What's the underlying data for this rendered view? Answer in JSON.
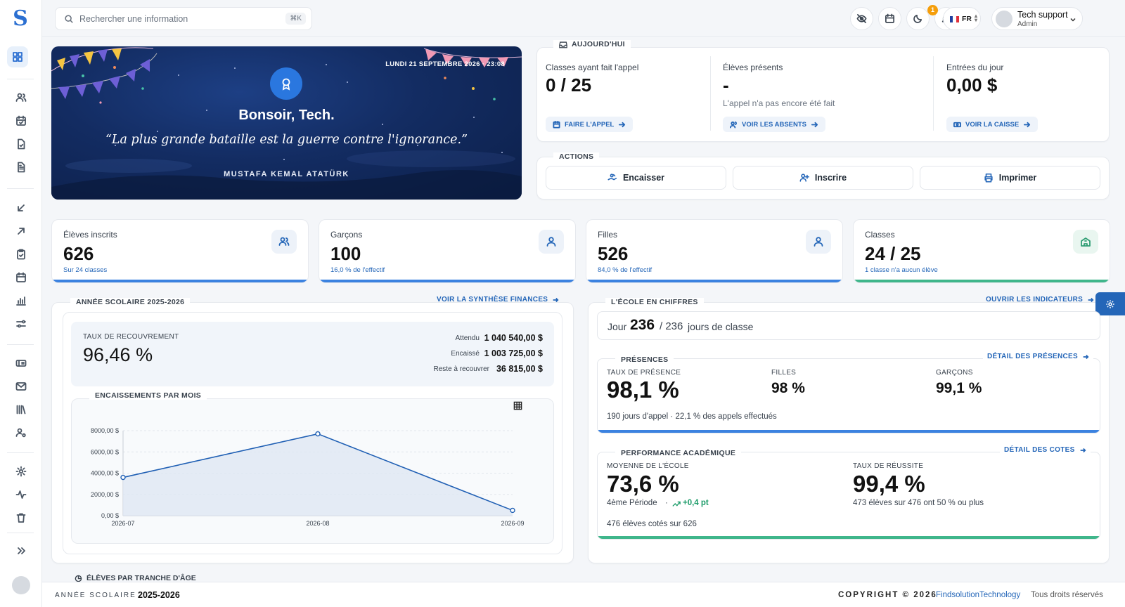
{
  "sidebar": {
    "logo": "S",
    "items": [
      "dashboard-icon",
      "users-icon",
      "calendar-check-icon",
      "file-check-icon",
      "file-text-icon",
      "arrow-down-left-icon",
      "arrow-up-right-icon",
      "clipboard-check-icon",
      "calendar-icon",
      "chart-icon",
      "sliders-icon",
      "ticket-icon",
      "mail-icon",
      "library-icon",
      "user-settings-icon",
      "gear-icon",
      "activity-icon",
      "trash-icon",
      "chevrons-right-icon"
    ]
  },
  "topbar": {
    "search_placeholder": "Rechercher une information",
    "search_shortcut": "⌘K",
    "notification_count": "1",
    "language": "FR",
    "user_name": "Tech support",
    "user_role": "Admin"
  },
  "hero": {
    "date": "LUNDI 21 SEPTEMBRE 2026 · 23:08",
    "greeting": "Bonsoir, Tech.",
    "quote": "“La plus grande bataille est la guerre contre l'ignorance.”",
    "author": "MUSTAFA KEMAL ATATÜRK"
  },
  "today": {
    "legend": "AUJOURD'HUI",
    "classes_label": "Classes ayant fait l'appel",
    "classes_value": "0 / 25",
    "classes_action": "FAIRE L'APPEL",
    "present_label": "Élèves présents",
    "present_value": "-",
    "present_note": "L'appel n'a pas encore été fait",
    "present_action": "VOIR LES ABSENTS",
    "entries_label": "Entrées du jour",
    "entries_value": "0,00 $",
    "entries_action": "VOIR LA CAISSE"
  },
  "actions": {
    "legend": "ACTIONS",
    "collect": "Encaisser",
    "enroll": "Inscrire",
    "print": "Imprimer"
  },
  "stats": [
    {
      "label": "Élèves inscrits",
      "value": "626",
      "sub": "Sur 24 classes",
      "icon": "users-icon"
    },
    {
      "label": "Garçons",
      "value": "100",
      "sub": "16,0 % de l'effectif",
      "icon": "user-icon"
    },
    {
      "label": "Filles",
      "value": "526",
      "sub": "84,0 % de l'effectif",
      "icon": "user-icon"
    },
    {
      "label": "Classes",
      "value": "24 / 25",
      "sub": "1 classe n'a aucun élève",
      "icon": "school-icon"
    }
  ],
  "finance": {
    "legend": "ANNÉE SCOLAIRE 2025-2026",
    "link": "VOIR LA SYNTHÈSE FINANCES",
    "rate_label": "TAUX DE RECOUVREMENT",
    "rate_value": "96,46 %",
    "expected_label": "Attendu",
    "expected_value": "1 040 540,00 $",
    "collected_label": "Encaissé",
    "collected_value": "1 003 725,00 $",
    "remaining_label": "Reste à recouvrer",
    "remaining_value": "36 815,00 $",
    "chart_legend": "ENCAISSEMENTS PAR MOIS"
  },
  "chart_data": {
    "type": "area",
    "x": [
      "2026-07",
      "2026-08",
      "2026-09"
    ],
    "values": [
      3600,
      7700,
      500
    ],
    "ylim": [
      0,
      8000
    ],
    "yticks": [
      "0,00 $",
      "2000,00 $",
      "4000,00 $",
      "6000,00 $",
      "8000,00 $"
    ],
    "grid": true,
    "colors": {
      "line": "#1f5fb4",
      "fill": "#dfe7f2"
    }
  },
  "school": {
    "legend": "L'ÉCOLE EN CHIFFRES",
    "link": "OUVRIR LES INDICATEURS",
    "day_prefix": "Jour",
    "day_value": "236",
    "day_total": "/ 236",
    "day_suffix": "jours de classe"
  },
  "attendance": {
    "legend": "PRÉSENCES",
    "link": "DÉTAIL DES PRÉSENCES",
    "rate_label": "TAUX DE PRÉSENCE",
    "rate_value": "98,1 %",
    "girls_label": "FILLES",
    "girls_value": "98 %",
    "boys_label": "GARÇONS",
    "boys_value": "99,1 %",
    "note": "190 jours d'appel · 22,1 % des appels effectués"
  },
  "academic": {
    "legend": "PERFORMANCE ACADÉMIQUE",
    "link": "DÉTAIL DES COTES",
    "avg_label": "MOYENNE DE L'ÉCOLE",
    "avg_value": "73,6 %",
    "period": "4ème Période",
    "trend": "+0,4 pt",
    "success_label": "TAUX DE RÉUSSITE",
    "success_value": "99,4 %",
    "success_note": "473 élèves sur 476 ont 50 % ou plus",
    "rated_note": "476 élèves cotés sur 626"
  },
  "age_section": {
    "legend": "ÉLÈVES PAR TRANCHE D'ÂGE"
  },
  "footer": {
    "year_label": "ANNÉE SCOLAIRE",
    "year_value": "2025-2026",
    "copyright": "COPYRIGHT © 2026",
    "company": "FindsolutionTechnology",
    "rights": "Tous droits réservés"
  },
  "colors": {
    "primary": "#2466b8",
    "blue_bar": "#3b82e0",
    "green_bar": "#3fb68b",
    "hero_bg": "#132c62"
  }
}
